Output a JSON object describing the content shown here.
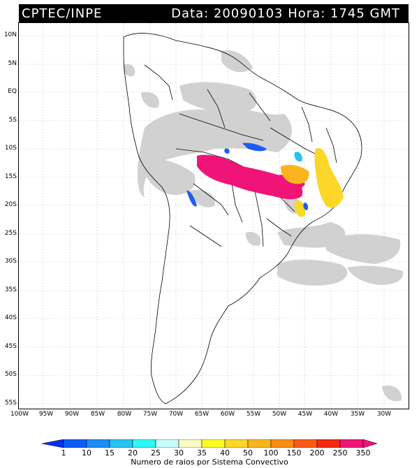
{
  "header": {
    "source": "CPTEC/INPE",
    "datetime": "Data: 20090103 Hora: 1745 GMT"
  },
  "lat_labels": [
    "10N",
    "5N",
    "EQ",
    "5S",
    "10S",
    "15S",
    "20S",
    "25S",
    "30S",
    "35S",
    "40S",
    "45S",
    "50S",
    "55S"
  ],
  "lon_labels": [
    "100W",
    "95W",
    "90W",
    "85W",
    "80W",
    "75W",
    "70W",
    "65W",
    "60W",
    "55W",
    "50W",
    "45W",
    "40W",
    "35W",
    "30W"
  ],
  "colorbar": {
    "labels": [
      "1",
      "10",
      "15",
      "20",
      "25",
      "30",
      "35",
      "40",
      "50",
      "100",
      "150",
      "200",
      "250",
      "350"
    ],
    "colors": [
      "#0a2ef5",
      "#0a5cf5",
      "#1e8cf5",
      "#28c3f0",
      "#32f5f5",
      "#c8fafa",
      "#fafac8",
      "#fafa28",
      "#fad728",
      "#fab41e",
      "#fa8c14",
      "#fa5a14",
      "#f52814",
      "#f01478"
    ],
    "title": "Numero de raios por Sistema Convectivo"
  }
}
